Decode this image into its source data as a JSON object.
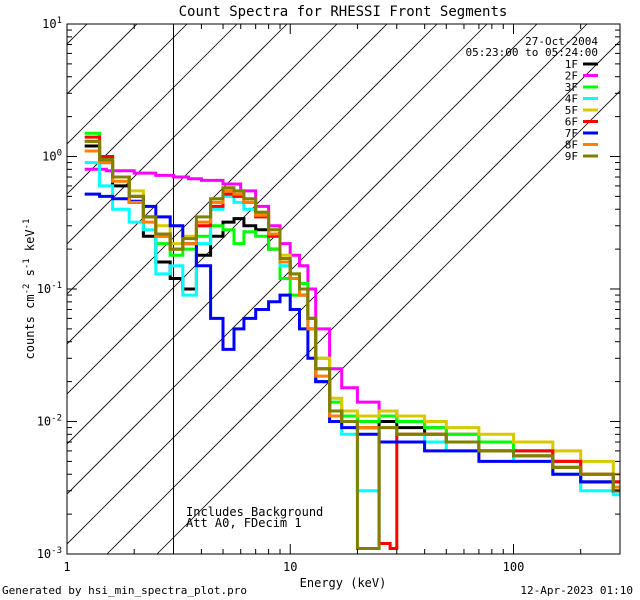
{
  "chart_data": {
    "type": "line",
    "title": "Count Spectra for RHESSI Front Segments",
    "xlabel": "Energy (keV)",
    "ylabel": "counts cm^-2 s^-1 keV^-1",
    "xscale": "log",
    "yscale": "log",
    "xlim": [
      1,
      300
    ],
    "ylim": [
      0.001,
      10
    ],
    "x_ticks": [
      1,
      10,
      100
    ],
    "y_ticks": [
      0.001,
      0.01,
      0.1,
      1,
      10
    ],
    "shaded_region_keV": [
      1,
      3
    ],
    "date": "27-Oct-2004",
    "time_range": "05:23:00 to 05:24:00",
    "notes": [
      "Includes Background",
      "Att A0, FDecim 1"
    ],
    "footer_left": "Generated by hsi_min_spectra_plot.pro",
    "footer_right": "12-Apr-2023 01:10",
    "series": [
      {
        "name": "1F",
        "color": "#000000",
        "points": [
          [
            1.2,
            1.2
          ],
          [
            1.4,
            0.9
          ],
          [
            1.6,
            0.6
          ],
          [
            1.9,
            0.45
          ],
          [
            2.2,
            0.25
          ],
          [
            2.5,
            0.16
          ],
          [
            2.9,
            0.12
          ],
          [
            3.3,
            0.1
          ],
          [
            3.8,
            0.18
          ],
          [
            4.4,
            0.25
          ],
          [
            5.0,
            0.32
          ],
          [
            5.6,
            0.34
          ],
          [
            6.2,
            0.3
          ],
          [
            7.0,
            0.28
          ],
          [
            8.0,
            0.2
          ],
          [
            9.0,
            0.16
          ],
          [
            10.0,
            0.12
          ],
          [
            11.0,
            0.09
          ],
          [
            12.0,
            0.05
          ],
          [
            13.0,
            0.02
          ],
          [
            15.0,
            0.012
          ],
          [
            17.0,
            0.01
          ],
          [
            20.0,
            0.009
          ],
          [
            25.0,
            0.01
          ],
          [
            30.0,
            0.009
          ],
          [
            40.0,
            0.008
          ],
          [
            50.0,
            0.007
          ],
          [
            70.0,
            0.006
          ],
          [
            100.0,
            0.0055
          ],
          [
            150.0,
            0.0045
          ],
          [
            200.0,
            0.0035
          ],
          [
            280.0,
            0.003
          ]
        ]
      },
      {
        "name": "2F",
        "color": "#ff00ff",
        "points": [
          [
            1.2,
            0.8
          ],
          [
            1.5,
            0.78
          ],
          [
            2.0,
            0.75
          ],
          [
            2.5,
            0.72
          ],
          [
            3.0,
            0.7
          ],
          [
            3.5,
            0.68
          ],
          [
            4.0,
            0.66
          ],
          [
            5.0,
            0.62
          ],
          [
            6.0,
            0.55
          ],
          [
            7.0,
            0.42
          ],
          [
            8.0,
            0.3
          ],
          [
            9.0,
            0.22
          ],
          [
            10.0,
            0.18
          ],
          [
            11.0,
            0.15
          ],
          [
            12.0,
            0.1
          ],
          [
            13.0,
            0.05
          ],
          [
            15.0,
            0.025
          ],
          [
            17.0,
            0.018
          ],
          [
            20.0,
            0.014
          ],
          [
            25.0,
            0.012
          ],
          [
            30.0,
            0.01
          ],
          [
            40.0,
            0.009
          ],
          [
            50.0,
            0.008
          ],
          [
            70.0,
            0.007
          ],
          [
            100.0,
            0.006
          ],
          [
            150.0,
            0.005
          ],
          [
            200.0,
            0.004
          ],
          [
            280.0,
            0.0035
          ]
        ]
      },
      {
        "name": "3F",
        "color": "#00ff00",
        "points": [
          [
            1.2,
            1.5
          ],
          [
            1.4,
            1.0
          ],
          [
            1.6,
            0.7
          ],
          [
            1.9,
            0.5
          ],
          [
            2.2,
            0.35
          ],
          [
            2.5,
            0.22
          ],
          [
            2.9,
            0.18
          ],
          [
            3.3,
            0.2
          ],
          [
            3.8,
            0.25
          ],
          [
            4.4,
            0.3
          ],
          [
            5.0,
            0.28
          ],
          [
            5.6,
            0.22
          ],
          [
            6.2,
            0.27
          ],
          [
            7.0,
            0.25
          ],
          [
            8.0,
            0.2
          ],
          [
            9.0,
            0.12
          ],
          [
            10.0,
            0.09
          ],
          [
            11.0,
            0.11
          ],
          [
            12.0,
            0.06
          ],
          [
            13.0,
            0.03
          ],
          [
            15.0,
            0.014
          ],
          [
            17.0,
            0.011
          ],
          [
            20.0,
            0.01
          ],
          [
            25.0,
            0.011
          ],
          [
            30.0,
            0.01
          ],
          [
            40.0,
            0.009
          ],
          [
            50.0,
            0.008
          ],
          [
            70.0,
            0.007
          ],
          [
            100.0,
            0.006
          ],
          [
            150.0,
            0.005
          ],
          [
            200.0,
            0.004
          ],
          [
            280.0,
            0.0035
          ]
        ]
      },
      {
        "name": "4F",
        "color": "#00ffff",
        "points": [
          [
            1.2,
            0.9
          ],
          [
            1.4,
            0.6
          ],
          [
            1.6,
            0.4
          ],
          [
            1.9,
            0.32
          ],
          [
            2.2,
            0.28
          ],
          [
            2.5,
            0.13
          ],
          [
            2.9,
            0.15
          ],
          [
            3.3,
            0.09
          ],
          [
            3.8,
            0.22
          ],
          [
            4.4,
            0.4
          ],
          [
            5.0,
            0.5
          ],
          [
            5.6,
            0.45
          ],
          [
            6.2,
            0.4
          ],
          [
            7.0,
            0.35
          ],
          [
            8.0,
            0.25
          ],
          [
            9.0,
            0.15
          ],
          [
            10.0,
            0.12
          ],
          [
            11.0,
            0.1
          ],
          [
            12.0,
            0.05
          ],
          [
            13.0,
            0.02
          ],
          [
            15.0,
            0.01
          ],
          [
            17.0,
            0.008
          ],
          [
            20.0,
            0.003
          ],
          [
            25.0,
            0.007
          ],
          [
            30.0,
            0.008
          ],
          [
            40.0,
            0.007
          ],
          [
            50.0,
            0.006
          ],
          [
            70.0,
            0.006
          ],
          [
            100.0,
            0.005
          ],
          [
            150.0,
            0.004
          ],
          [
            200.0,
            0.003
          ],
          [
            280.0,
            0.0028
          ]
        ]
      },
      {
        "name": "5F",
        "color": "#d8c800",
        "points": [
          [
            1.2,
            1.3
          ],
          [
            1.4,
            1.0
          ],
          [
            1.6,
            0.7
          ],
          [
            1.9,
            0.55
          ],
          [
            2.2,
            0.35
          ],
          [
            2.5,
            0.3
          ],
          [
            2.9,
            0.22
          ],
          [
            3.3,
            0.25
          ],
          [
            3.8,
            0.3
          ],
          [
            4.4,
            0.45
          ],
          [
            5.0,
            0.55
          ],
          [
            5.6,
            0.5
          ],
          [
            6.2,
            0.45
          ],
          [
            7.0,
            0.38
          ],
          [
            8.0,
            0.28
          ],
          [
            9.0,
            0.18
          ],
          [
            10.0,
            0.13
          ],
          [
            11.0,
            0.1
          ],
          [
            12.0,
            0.06
          ],
          [
            13.0,
            0.03
          ],
          [
            15.0,
            0.015
          ],
          [
            17.0,
            0.012
          ],
          [
            20.0,
            0.011
          ],
          [
            25.0,
            0.012
          ],
          [
            30.0,
            0.011
          ],
          [
            40.0,
            0.01
          ],
          [
            50.0,
            0.009
          ],
          [
            70.0,
            0.008
          ],
          [
            100.0,
            0.007
          ],
          [
            150.0,
            0.006
          ],
          [
            200.0,
            0.005
          ],
          [
            280.0,
            0.004
          ]
        ]
      },
      {
        "name": "6F",
        "color": "#ff0000",
        "points": [
          [
            1.2,
            1.4
          ],
          [
            1.4,
            1.0
          ],
          [
            1.6,
            0.7
          ],
          [
            1.9,
            0.5
          ],
          [
            2.2,
            0.35
          ],
          [
            2.5,
            0.25
          ],
          [
            2.9,
            0.2
          ],
          [
            3.3,
            0.22
          ],
          [
            3.8,
            0.3
          ],
          [
            4.4,
            0.42
          ],
          [
            5.0,
            0.52
          ],
          [
            5.6,
            0.5
          ],
          [
            6.2,
            0.45
          ],
          [
            7.0,
            0.35
          ],
          [
            8.0,
            0.25
          ],
          [
            9.0,
            0.16
          ],
          [
            10.0,
            0.12
          ],
          [
            11.0,
            0.1
          ],
          [
            12.0,
            0.06
          ],
          [
            13.0,
            0.025
          ],
          [
            15.0,
            0.012
          ],
          [
            17.0,
            0.01
          ],
          [
            20.0,
            0.009
          ],
          [
            25.0,
            0.0012
          ],
          [
            28.0,
            0.0011
          ],
          [
            30.0,
            0.008
          ],
          [
            40.0,
            0.008
          ],
          [
            50.0,
            0.007
          ],
          [
            70.0,
            0.006
          ],
          [
            100.0,
            0.006
          ],
          [
            150.0,
            0.005
          ],
          [
            200.0,
            0.004
          ],
          [
            280.0,
            0.0035
          ]
        ]
      },
      {
        "name": "7F",
        "color": "#0000ff",
        "points": [
          [
            1.2,
            0.52
          ],
          [
            1.4,
            0.5
          ],
          [
            1.6,
            0.48
          ],
          [
            1.9,
            0.46
          ],
          [
            2.2,
            0.42
          ],
          [
            2.5,
            0.35
          ],
          [
            2.9,
            0.3
          ],
          [
            3.3,
            0.22
          ],
          [
            3.8,
            0.15
          ],
          [
            4.4,
            0.06
          ],
          [
            5.0,
            0.035
          ],
          [
            5.6,
            0.05
          ],
          [
            6.2,
            0.06
          ],
          [
            7.0,
            0.07
          ],
          [
            8.0,
            0.08
          ],
          [
            9.0,
            0.09
          ],
          [
            10.0,
            0.07
          ],
          [
            11.0,
            0.05
          ],
          [
            12.0,
            0.03
          ],
          [
            13.0,
            0.02
          ],
          [
            15.0,
            0.01
          ],
          [
            17.0,
            0.009
          ],
          [
            20.0,
            0.008
          ],
          [
            25.0,
            0.007
          ],
          [
            30.0,
            0.007
          ],
          [
            40.0,
            0.006
          ],
          [
            50.0,
            0.006
          ],
          [
            70.0,
            0.005
          ],
          [
            100.0,
            0.005
          ],
          [
            150.0,
            0.004
          ],
          [
            200.0,
            0.0035
          ],
          [
            280.0,
            0.003
          ]
        ]
      },
      {
        "name": "8F",
        "color": "#ff8000",
        "points": [
          [
            1.2,
            1.1
          ],
          [
            1.4,
            0.9
          ],
          [
            1.6,
            0.65
          ],
          [
            1.9,
            0.45
          ],
          [
            2.2,
            0.32
          ],
          [
            2.5,
            0.25
          ],
          [
            2.9,
            0.2
          ],
          [
            3.3,
            0.22
          ],
          [
            3.8,
            0.32
          ],
          [
            4.4,
            0.45
          ],
          [
            5.0,
            0.55
          ],
          [
            5.6,
            0.52
          ],
          [
            6.2,
            0.45
          ],
          [
            7.0,
            0.36
          ],
          [
            8.0,
            0.26
          ],
          [
            9.0,
            0.16
          ],
          [
            10.0,
            0.12
          ],
          [
            11.0,
            0.09
          ],
          [
            12.0,
            0.05
          ],
          [
            13.0,
            0.022
          ],
          [
            15.0,
            0.011
          ],
          [
            17.0,
            0.01
          ],
          [
            20.0,
            0.009
          ],
          [
            25.0,
            0.009
          ],
          [
            30.0,
            0.008
          ],
          [
            40.0,
            0.008
          ],
          [
            50.0,
            0.007
          ],
          [
            70.0,
            0.006
          ],
          [
            100.0,
            0.0055
          ],
          [
            150.0,
            0.0045
          ],
          [
            200.0,
            0.004
          ],
          [
            280.0,
            0.0032
          ]
        ]
      },
      {
        "name": "9F",
        "color": "#808000",
        "points": [
          [
            1.2,
            1.3
          ],
          [
            1.4,
            0.95
          ],
          [
            1.6,
            0.7
          ],
          [
            1.9,
            0.5
          ],
          [
            2.2,
            0.35
          ],
          [
            2.5,
            0.26
          ],
          [
            2.9,
            0.2
          ],
          [
            3.3,
            0.24
          ],
          [
            3.8,
            0.35
          ],
          [
            4.4,
            0.48
          ],
          [
            5.0,
            0.58
          ],
          [
            5.6,
            0.55
          ],
          [
            6.2,
            0.48
          ],
          [
            7.0,
            0.38
          ],
          [
            8.0,
            0.28
          ],
          [
            9.0,
            0.17
          ],
          [
            10.0,
            0.13
          ],
          [
            11.0,
            0.1
          ],
          [
            12.0,
            0.06
          ],
          [
            13.0,
            0.025
          ],
          [
            15.0,
            0.012
          ],
          [
            17.0,
            0.01
          ],
          [
            20.0,
            0.0011
          ],
          [
            25.0,
            0.009
          ],
          [
            30.0,
            0.008
          ],
          [
            40.0,
            0.008
          ],
          [
            50.0,
            0.007
          ],
          [
            70.0,
            0.006
          ],
          [
            100.0,
            0.0055
          ],
          [
            150.0,
            0.0045
          ],
          [
            200.0,
            0.004
          ],
          [
            280.0,
            0.003
          ]
        ]
      }
    ]
  }
}
